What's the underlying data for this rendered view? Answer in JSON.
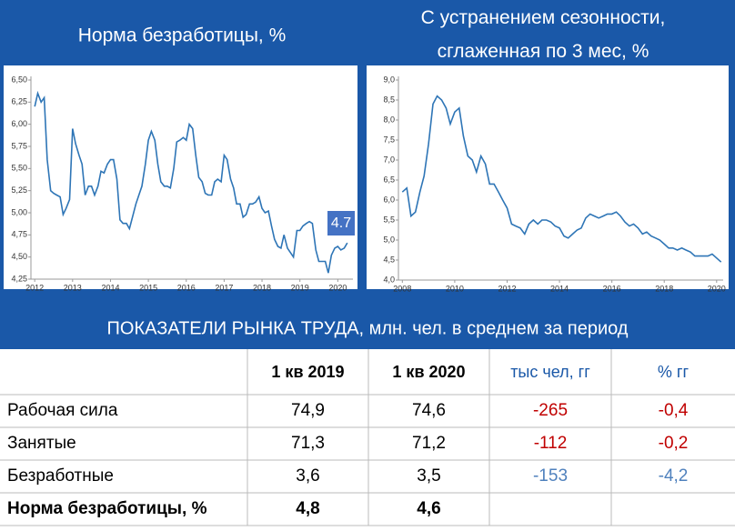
{
  "chart_data": [
    {
      "type": "line",
      "title": "Норма безработицы, %",
      "color": "#2e75b6",
      "grid": false,
      "annotation": "4.7",
      "xlim": [
        2011.9,
        2020.4
      ],
      "xticks": [
        2012,
        2013,
        2014,
        2015,
        2016,
        2017,
        2018,
        2019,
        2020
      ],
      "ylim": [
        4.25,
        6.5
      ],
      "yticks": [
        {
          "value": 6.5,
          "label": "6,50"
        },
        {
          "value": 6.25,
          "label": "6,25"
        },
        {
          "value": 6.0,
          "label": "6,00"
        },
        {
          "value": 5.75,
          "label": "5,75"
        },
        {
          "value": 5.5,
          "label": "5,50"
        },
        {
          "value": 5.25,
          "label": "5,25"
        },
        {
          "value": 5.0,
          "label": "5,00"
        },
        {
          "value": 4.75,
          "label": "4,75"
        },
        {
          "value": 4.5,
          "label": "4,50"
        },
        {
          "value": 4.25,
          "label": "4,25"
        }
      ],
      "x": [
        2012,
        2012.08,
        2012.17,
        2012.25,
        2012.33,
        2012.42,
        2012.5,
        2012.58,
        2012.67,
        2012.75,
        2012.83,
        2012.92,
        2013,
        2013.08,
        2013.17,
        2013.25,
        2013.33,
        2013.42,
        2013.5,
        2013.58,
        2013.67,
        2013.75,
        2013.83,
        2013.92,
        2014,
        2014.08,
        2014.17,
        2014.25,
        2014.33,
        2014.42,
        2014.5,
        2014.58,
        2014.67,
        2014.75,
        2014.83,
        2014.92,
        2015,
        2015.08,
        2015.17,
        2015.25,
        2015.33,
        2015.42,
        2015.5,
        2015.58,
        2015.67,
        2015.75,
        2015.83,
        2015.92,
        2016,
        2016.08,
        2016.17,
        2016.25,
        2016.33,
        2016.42,
        2016.5,
        2016.58,
        2016.67,
        2016.75,
        2016.83,
        2016.92,
        2017,
        2017.08,
        2017.17,
        2017.25,
        2017.33,
        2017.42,
        2017.5,
        2017.58,
        2017.67,
        2017.75,
        2017.83,
        2017.92,
        2018,
        2018.08,
        2018.17,
        2018.25,
        2018.33,
        2018.42,
        2018.5,
        2018.58,
        2018.67,
        2018.75,
        2018.83,
        2018.92,
        2019,
        2019.08,
        2019.17,
        2019.25,
        2019.33,
        2019.42,
        2019.5,
        2019.58,
        2019.67,
        2019.75,
        2019.83,
        2019.92,
        2020,
        2020.08,
        2020.17,
        2020.25
      ],
      "values": [
        6.2,
        6.35,
        6.25,
        6.3,
        5.6,
        5.25,
        5.22,
        5.2,
        5.18,
        4.98,
        5.05,
        5.15,
        5.95,
        5.78,
        5.65,
        5.55,
        5.2,
        5.3,
        5.3,
        5.2,
        5.3,
        5.47,
        5.45,
        5.55,
        5.6,
        5.6,
        5.38,
        4.92,
        4.88,
        4.88,
        4.82,
        4.95,
        5.1,
        5.2,
        5.3,
        5.55,
        5.82,
        5.92,
        5.82,
        5.55,
        5.35,
        5.3,
        5.3,
        5.28,
        5.5,
        5.8,
        5.82,
        5.85,
        5.82,
        6.0,
        5.95,
        5.65,
        5.4,
        5.35,
        5.22,
        5.2,
        5.2,
        5.35,
        5.38,
        5.35,
        5.65,
        5.6,
        5.38,
        5.28,
        5.1,
        5.1,
        4.95,
        4.98,
        5.1,
        5.1,
        5.12,
        5.18,
        5.05,
        5.0,
        5.02,
        4.85,
        4.7,
        4.62,
        4.6,
        4.75,
        4.6,
        4.55,
        4.5,
        4.8,
        4.8,
        4.85,
        4.88,
        4.9,
        4.88,
        4.58,
        4.45,
        4.45,
        4.45,
        4.32,
        4.52,
        4.6,
        4.62,
        4.58,
        4.6,
        4.66
      ]
    },
    {
      "type": "line",
      "title": "С устранением сезонности, сглаженная по 3 мес, %",
      "color": "#2e75b6",
      "grid": false,
      "xlim": [
        2007.85,
        2020.25
      ],
      "xticks": [
        2008,
        2010,
        2012,
        2014,
        2016,
        2018,
        2020
      ],
      "ylim": [
        4.0,
        9.0
      ],
      "yticks": [
        {
          "value": 9.0,
          "label": "9,0"
        },
        {
          "value": 8.5,
          "label": "8,5"
        },
        {
          "value": 8.0,
          "label": "8,0"
        },
        {
          "value": 7.5,
          "label": "7,5"
        },
        {
          "value": 7.0,
          "label": "7,0"
        },
        {
          "value": 6.5,
          "label": "6,5"
        },
        {
          "value": 6.0,
          "label": "6,0"
        },
        {
          "value": 5.5,
          "label": "5,5"
        },
        {
          "value": 5.0,
          "label": "5,0"
        },
        {
          "value": 4.5,
          "label": "4,5"
        },
        {
          "value": 4.0,
          "label": "4,0"
        }
      ],
      "x": [
        2008,
        2008.17,
        2008.33,
        2008.5,
        2008.67,
        2008.83,
        2009,
        2009.17,
        2009.33,
        2009.5,
        2009.67,
        2009.83,
        2010,
        2010.17,
        2010.33,
        2010.5,
        2010.67,
        2010.83,
        2011,
        2011.17,
        2011.33,
        2011.5,
        2011.67,
        2011.83,
        2012,
        2012.17,
        2012.33,
        2012.5,
        2012.67,
        2012.83,
        2013,
        2013.17,
        2013.33,
        2013.5,
        2013.67,
        2013.83,
        2014,
        2014.17,
        2014.33,
        2014.5,
        2014.67,
        2014.83,
        2015,
        2015.17,
        2015.33,
        2015.5,
        2015.67,
        2015.83,
        2016,
        2016.17,
        2016.33,
        2016.5,
        2016.67,
        2016.83,
        2017,
        2017.17,
        2017.33,
        2017.5,
        2017.67,
        2017.83,
        2018,
        2018.17,
        2018.33,
        2018.5,
        2018.67,
        2018.83,
        2019,
        2019.17,
        2019.33,
        2019.5,
        2019.67,
        2019.83,
        2020,
        2020.17
      ],
      "values": [
        6.2,
        6.3,
        5.6,
        5.7,
        6.2,
        6.6,
        7.4,
        8.4,
        8.6,
        8.5,
        8.3,
        7.9,
        8.2,
        8.3,
        7.6,
        7.1,
        7.0,
        6.7,
        7.1,
        6.9,
        6.4,
        6.4,
        6.2,
        6.0,
        5.8,
        5.4,
        5.35,
        5.3,
        5.15,
        5.4,
        5.5,
        5.4,
        5.5,
        5.5,
        5.45,
        5.35,
        5.3,
        5.1,
        5.05,
        5.15,
        5.25,
        5.3,
        5.55,
        5.65,
        5.6,
        5.55,
        5.6,
        5.65,
        5.65,
        5.7,
        5.6,
        5.45,
        5.35,
        5.4,
        5.3,
        5.15,
        5.2,
        5.1,
        5.05,
        5.0,
        4.9,
        4.8,
        4.8,
        4.75,
        4.8,
        4.75,
        4.7,
        4.6,
        4.6,
        4.6,
        4.6,
        4.65,
        4.55,
        4.45
      ]
    }
  ],
  "table": {
    "title": "ПОКАЗАТЕЛИ РЫНКА ТРУДА, млн. чел. в среднем за период",
    "columns": [
      "1 кв 2019",
      "1 кв 2020",
      "тыс чел, гг",
      "% гг"
    ],
    "rows": [
      [
        "Рабочая сила",
        "74,9",
        "74,6",
        "-265",
        "-0,4"
      ],
      [
        "Занятые",
        "71,3",
        "71,2",
        "-112",
        "-0,2"
      ],
      [
        "Безработные",
        "3,6",
        "3,5",
        "-153",
        "-4,2"
      ],
      [
        "Норма безработицы, %",
        "4,8",
        "4,6"
      ]
    ],
    "row_colors": [
      "#c00000",
      "#c00000",
      "#4f81bd"
    ]
  }
}
